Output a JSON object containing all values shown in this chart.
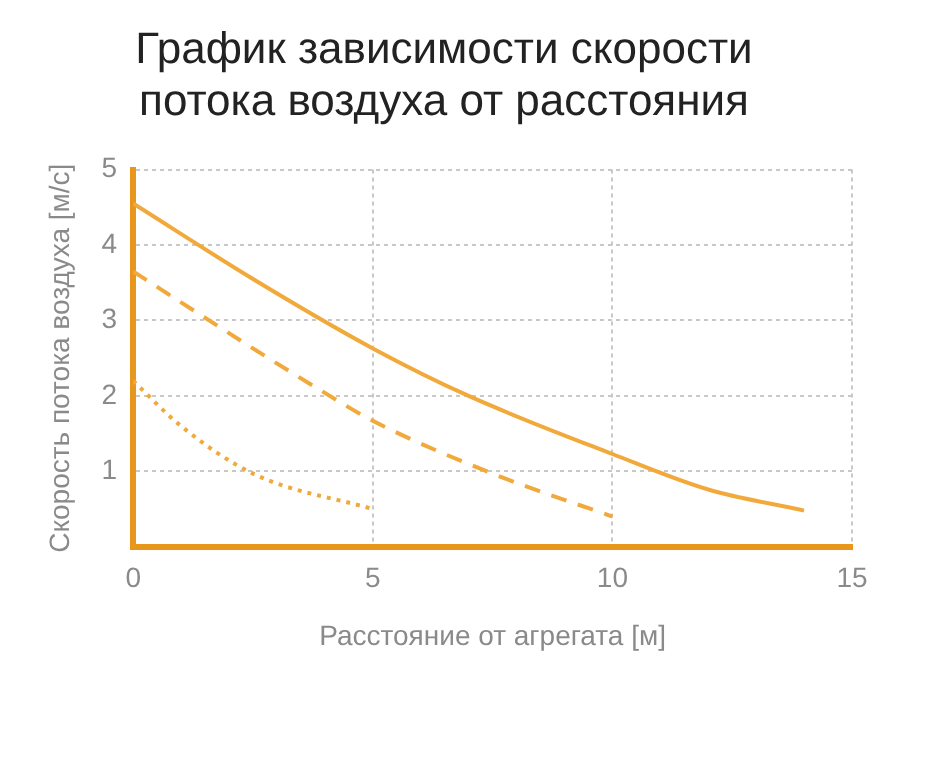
{
  "chart_data": {
    "type": "line",
    "title": [
      "График зависимости скорости",
      "потока воздуха от расстояния"
    ],
    "xlabel": "Расстояние от агрегата [м]",
    "ylabel": "Скорость потока воздуха [м/с]",
    "xlim": [
      0,
      15
    ],
    "xticks": [
      0,
      5,
      10,
      15
    ],
    "ylim": [
      0,
      5
    ],
    "yticks": [
      {
        "value": 0,
        "label": null
      },
      1,
      2,
      3,
      4,
      5
    ],
    "grid": true,
    "legend": false,
    "marker": "none",
    "series": [
      {
        "color": "#f2a93b",
        "line_style": "solid",
        "x": [
          0,
          2.5,
          5,
          7,
          10,
          12,
          14
        ],
        "values": [
          4.55,
          3.55,
          2.63,
          2.0,
          1.23,
          0.76,
          0.48
        ]
      },
      {
        "color": "#f2a93b",
        "line_style": "dashed",
        "x": [
          0,
          2.5,
          4,
          5,
          7.5,
          10
        ],
        "values": [
          3.65,
          2.63,
          2.04,
          1.67,
          0.97,
          0.4
        ]
      },
      {
        "color": "#f2a93b",
        "line_style": "dotted",
        "x": [
          0,
          1,
          2.5,
          5
        ],
        "values": [
          2.2,
          1.6,
          0.97,
          0.5
        ]
      }
    ]
  }
}
